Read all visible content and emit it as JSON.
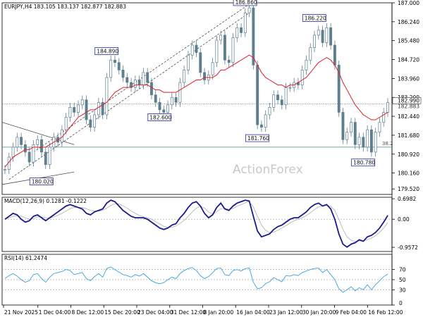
{
  "chart_data": [
    {
      "type": "candlestick",
      "title": "EURJPY,H4  183.105 183.137 182.877 182.883",
      "y_ticks": [
        "187.000",
        "186.240",
        "185.480",
        "184.720",
        "183.960",
        "183.200",
        "182.440",
        "181.680",
        "180.920",
        "180.160",
        "179.520"
      ],
      "ylim": [
        179.3,
        187.0
      ],
      "current_price_labels": [
        "182.990",
        "182.883"
      ],
      "current_price": 182.94,
      "fib_label": "38.2",
      "fib_level": 181.2,
      "watermark": "ActionForex",
      "swing_labels": [
        {
          "text": "186.860",
          "value": 186.86
        },
        {
          "text": "186.220",
          "value": 186.22
        },
        {
          "text": "184.890",
          "value": 184.89
        },
        {
          "text": "182.600",
          "value": 182.6
        },
        {
          "text": "181.760",
          "value": 181.76
        },
        {
          "text": "180.780",
          "value": 180.78
        },
        {
          "text": "180.020",
          "value": 180.02
        }
      ],
      "series": [
        {
          "name": "price",
          "values": [
            180.3,
            180.8,
            181.2,
            181.6,
            181.3,
            181.0,
            180.6,
            181.3,
            181.5,
            181.0,
            180.5,
            181.2,
            181.6,
            181.4,
            181.9,
            182.4,
            182.8,
            182.6,
            182.9,
            183.1,
            182.3,
            182.0,
            182.5,
            183.0,
            182.5,
            184.0,
            184.7,
            184.6,
            184.3,
            184.0,
            183.8,
            183.6,
            183.9,
            183.7,
            184.2,
            183.8,
            183.3,
            183.0,
            182.7,
            182.6,
            182.9,
            183.2,
            183.0,
            183.8,
            184.3,
            184.9,
            185.3,
            185.0,
            184.2,
            183.9,
            184.1,
            184.6,
            185.5,
            185.7,
            184.7,
            184.6,
            185.6,
            186.0,
            185.8,
            186.6,
            186.8,
            184.5,
            182.1,
            182.0,
            182.5,
            182.8,
            183.3,
            183.1,
            182.9,
            183.6,
            183.6,
            183.8,
            183.7,
            184.3,
            184.7,
            185.2,
            185.7,
            185.9,
            185.4,
            186.0,
            185.3,
            184.5,
            182.6,
            181.5,
            181.8,
            182.2,
            181.3,
            181.6,
            181.2,
            181.9,
            181.0,
            181.8,
            182.2,
            182.6,
            182.99
          ]
        },
        {
          "name": "moving-average",
          "values": [
            180.4,
            180.6,
            180.8,
            180.9,
            181.0,
            181.1,
            181.1,
            181.2,
            181.2,
            181.2,
            181.2,
            181.3,
            181.4,
            181.5,
            181.6,
            181.8,
            182.0,
            182.2,
            182.4,
            182.5,
            182.6,
            182.7,
            182.7,
            182.8,
            182.9,
            183.0,
            183.2,
            183.4,
            183.5,
            183.6,
            183.6,
            183.6,
            183.7,
            183.7,
            183.7,
            183.7,
            183.6,
            183.5,
            183.5,
            183.4,
            183.4,
            183.4,
            183.4,
            183.5,
            183.6,
            183.7,
            183.8,
            183.9,
            183.9,
            184.0,
            184.0,
            184.0,
            184.1,
            184.3,
            184.3,
            184.4,
            184.5,
            184.6,
            184.7,
            184.8,
            184.9,
            184.8,
            184.5,
            184.2,
            184.0,
            183.9,
            183.8,
            183.7,
            183.7,
            183.6,
            183.7,
            183.7,
            183.8,
            183.9,
            184.0,
            184.2,
            184.4,
            184.6,
            184.7,
            184.8,
            184.7,
            184.5,
            184.2,
            183.8,
            183.5,
            183.2,
            182.9,
            182.7,
            182.5,
            182.4,
            182.3,
            182.3,
            182.4,
            182.5,
            182.6
          ]
        }
      ]
    },
    {
      "type": "line",
      "title": "MACD(12,26,9) 0.1281 -0.1222",
      "y_ticks": [
        "0.6982",
        "0.00",
        "-0.9572"
      ],
      "ylim": [
        -1.1,
        0.75
      ],
      "series": [
        {
          "name": "macd",
          "values": [
            0.0,
            0.1,
            0.2,
            0.15,
            0.0,
            -0.1,
            -0.05,
            0.1,
            0.15,
            0.05,
            -0.05,
            0.05,
            0.15,
            0.25,
            0.35,
            0.45,
            0.5,
            0.45,
            0.4,
            0.35,
            0.2,
            0.15,
            0.25,
            0.3,
            0.35,
            0.55,
            0.65,
            0.6,
            0.45,
            0.3,
            0.2,
            0.1,
            0.05,
            0.05,
            0.05,
            0.0,
            -0.1,
            -0.2,
            -0.3,
            -0.35,
            -0.3,
            -0.2,
            -0.15,
            0.05,
            0.2,
            0.4,
            0.55,
            0.6,
            0.45,
            0.2,
            0.05,
            0.15,
            0.4,
            0.55,
            0.35,
            0.3,
            0.45,
            0.55,
            0.6,
            0.65,
            0.62,
            0.1,
            -0.4,
            -0.6,
            -0.55,
            -0.5,
            -0.35,
            -0.25,
            -0.2,
            -0.1,
            0.0,
            0.05,
            0.05,
            0.15,
            0.25,
            0.4,
            0.5,
            0.55,
            0.45,
            0.5,
            0.35,
            0.0,
            -0.5,
            -0.85,
            -0.95,
            -0.85,
            -0.8,
            -0.7,
            -0.75,
            -0.6,
            -0.55,
            -0.45,
            -0.3,
            -0.1,
            0.13
          ]
        },
        {
          "name": "signal",
          "values": [
            0.0,
            0.05,
            0.1,
            0.12,
            0.1,
            0.05,
            0.0,
            0.03,
            0.08,
            0.08,
            0.05,
            0.04,
            0.08,
            0.13,
            0.2,
            0.28,
            0.36,
            0.4,
            0.41,
            0.4,
            0.36,
            0.3,
            0.28,
            0.28,
            0.3,
            0.38,
            0.47,
            0.53,
            0.52,
            0.46,
            0.38,
            0.28,
            0.2,
            0.13,
            0.08,
            0.05,
            0.0,
            -0.08,
            -0.16,
            -0.24,
            -0.28,
            -0.27,
            -0.23,
            -0.14,
            -0.04,
            0.1,
            0.25,
            0.38,
            0.44,
            0.38,
            0.25,
            0.18,
            0.25,
            0.36,
            0.37,
            0.34,
            0.37,
            0.44,
            0.5,
            0.56,
            0.6,
            0.42,
            0.1,
            -0.2,
            -0.38,
            -0.46,
            -0.44,
            -0.38,
            -0.3,
            -0.22,
            -0.13,
            -0.05,
            0.0,
            0.05,
            0.12,
            0.22,
            0.33,
            0.42,
            0.45,
            0.47,
            0.44,
            0.3,
            0.0,
            -0.35,
            -0.6,
            -0.72,
            -0.76,
            -0.74,
            -0.74,
            -0.7,
            -0.64,
            -0.56,
            -0.45,
            -0.3,
            -0.12
          ]
        }
      ]
    },
    {
      "type": "line",
      "title": "RSI(14) 61.2474",
      "y_ticks": [
        "70",
        "50",
        "30",
        "0"
      ],
      "ylim": [
        0,
        100
      ],
      "series": [
        {
          "name": "rsi",
          "values": [
            52,
            58,
            62,
            57,
            50,
            45,
            48,
            60,
            62,
            52,
            45,
            55,
            62,
            64,
            66,
            70,
            68,
            60,
            62,
            64,
            52,
            48,
            56,
            62,
            55,
            72,
            75,
            70,
            65,
            60,
            58,
            55,
            60,
            57,
            62,
            55,
            48,
            44,
            42,
            44,
            50,
            55,
            52,
            62,
            68,
            72,
            74,
            68,
            58,
            52,
            56,
            64,
            72,
            73,
            60,
            58,
            68,
            70,
            67,
            72,
            73,
            45,
            32,
            34,
            42,
            46,
            54,
            50,
            46,
            58,
            57,
            60,
            58,
            64,
            67,
            70,
            72,
            73,
            64,
            70,
            60,
            50,
            32,
            25,
            30,
            36,
            28,
            34,
            30,
            40,
            30,
            40,
            48,
            56,
            61
          ]
        }
      ]
    },
    {
      "type": "axis",
      "x_ticks": [
        "21 Nov 2025",
        "1 Dec 04:00",
        "8 Dec 12:00",
        "15 Dec 20:00",
        "23 Dec 04:00",
        "31 Dec 12:00",
        "8 Jan 20:00",
        "16 Jan 04:00",
        "23 Jan 12:00",
        "30 Jan 20:00",
        "9 Feb 04:00",
        "16 Feb 12:00"
      ]
    }
  ],
  "colors": {
    "price": "#5e7f8e",
    "ma": "#e0202a",
    "macd": "#1a1a8a",
    "signal": "#b0b0b0",
    "rsi": "#3aa0e0",
    "label_border": "#2a2aa0",
    "grid": "#b0b0b0"
  }
}
